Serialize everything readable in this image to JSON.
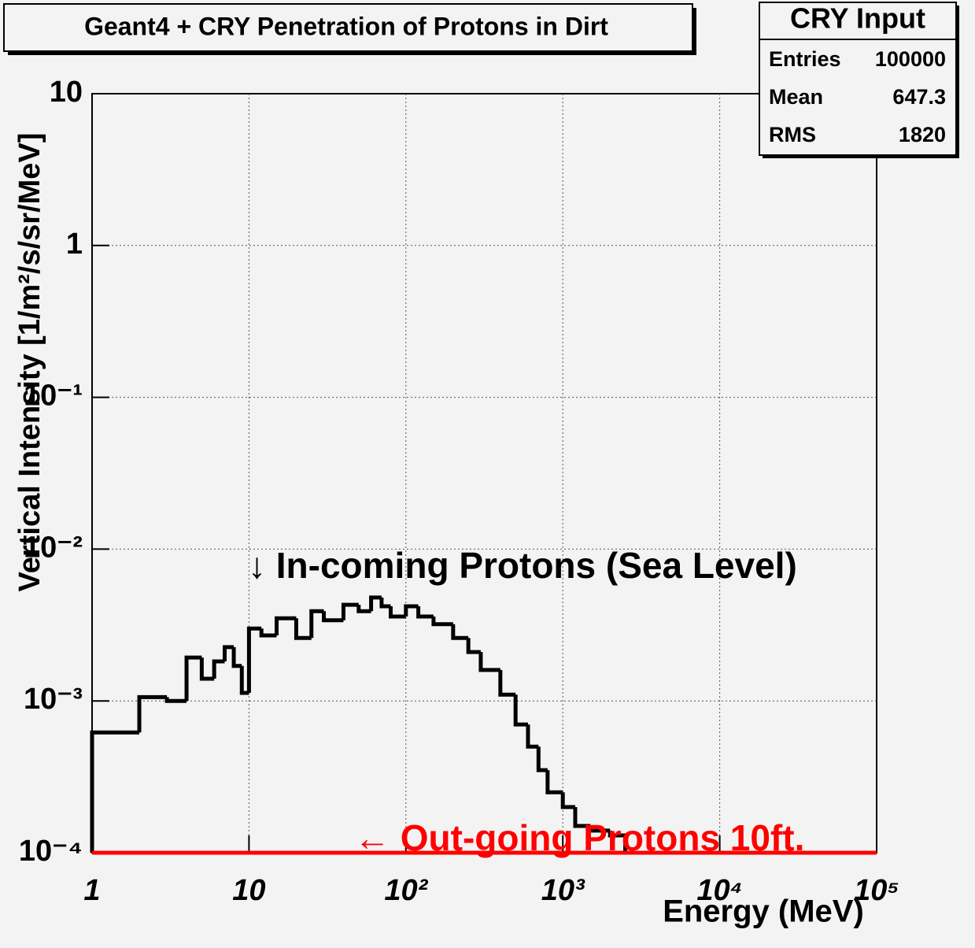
{
  "chart_data": {
    "type": "histogram",
    "title": "Geant4 + CRY Penetration of Protons in Dirt",
    "x_label": "Energy (MeV)",
    "y_label": "Vertical Intensity [1/m²/s/sr/MeV]",
    "log_x": true,
    "log_y": true,
    "grid": true,
    "xlim": [
      1,
      100000
    ],
    "ylim": [
      0.0001,
      10
    ],
    "xticks": [
      1,
      10,
      {
        "value": 100,
        "label": "10²"
      },
      {
        "value": 1000,
        "label": "10³"
      },
      {
        "value": 10000,
        "label": "10⁴"
      },
      {
        "value": 100000,
        "label": "10⁵"
      }
    ],
    "yticks": [
      {
        "value": 0.0001,
        "label": "10⁻⁴"
      },
      {
        "value": 0.001,
        "label": "10⁻³"
      },
      {
        "value": 0.01,
        "label": "10⁻²"
      },
      {
        "value": 0.1,
        "label": "10⁻¹"
      },
      1,
      10
    ],
    "series": [
      {
        "color": "#000000",
        "bins": [
          1,
          2,
          3,
          4,
          5,
          6,
          7,
          8,
          9,
          10,
          12,
          15,
          20,
          25,
          30,
          40,
          50,
          60,
          70,
          80,
          100,
          120,
          150,
          200,
          250,
          300,
          400,
          500,
          600,
          700,
          800,
          1000,
          1200,
          1500,
          2000,
          2500
        ],
        "values": [
          0.00062,
          0.00106,
          0.001,
          0.00193,
          0.0014,
          0.00182,
          0.00226,
          0.0017,
          0.00113,
          0.003,
          0.0027,
          0.0035,
          0.0026,
          0.0039,
          0.0034,
          0.0043,
          0.0039,
          0.0048,
          0.0042,
          0.0036,
          0.0042,
          0.0036,
          0.0032,
          0.0026,
          0.0021,
          0.0016,
          0.0011,
          0.0007,
          0.0005,
          0.00035,
          0.00025,
          0.0002,
          0.00015,
          0.00014,
          0.00013
        ]
      },
      {
        "color": "#ff0000",
        "bins": [
          1,
          100000
        ],
        "values": [
          0.0001
        ]
      }
    ],
    "annotations": [
      {
        "text": "↓ In-coming Protons (Sea Level)",
        "color": "#000000"
      },
      {
        "text": "← Out-going Protons 10ft.",
        "color": "#ff0000"
      }
    ],
    "stats": {
      "title": "CRY Input",
      "rows": [
        {
          "label": "Entries",
          "value": "100000"
        },
        {
          "label": "Mean",
          "value": "647.3"
        },
        {
          "label": "RMS",
          "value": "1820"
        }
      ]
    }
  }
}
